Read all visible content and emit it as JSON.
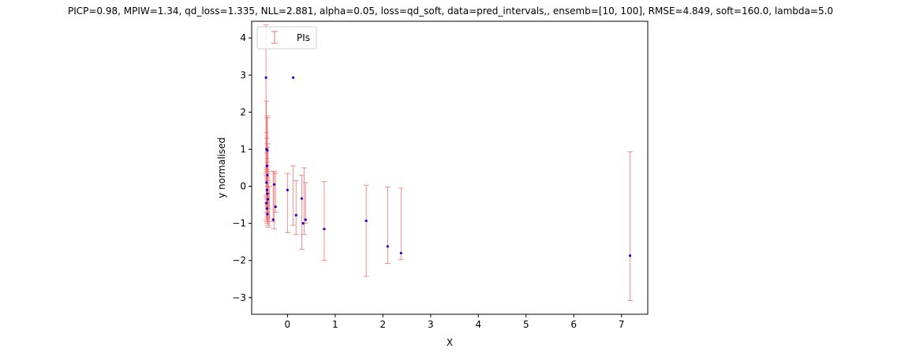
{
  "chart_data": {
    "type": "scatter",
    "title": "PICP=0.98, MPIW=1.34, qd_loss=1.335, NLL=2.881, alpha=0.05, loss=qd_soft, data=pred_intervals,, ensemb=[10, 100], RMSE=4.849, soft=160.0, lambda=5.0",
    "xlabel": "X",
    "ylabel": "y normalised",
    "xlim": [
      -0.75,
      7.55
    ],
    "ylim": [
      -3.45,
      4.45
    ],
    "xticks": [
      0,
      1,
      2,
      3,
      4,
      5,
      6,
      7
    ],
    "xtick_labels": [
      "0",
      "1",
      "2",
      "3",
      "4",
      "5",
      "6",
      "7"
    ],
    "yticks": [
      -3,
      -2,
      -1,
      0,
      1,
      2,
      3,
      4
    ],
    "ytick_labels": [
      "−3",
      "−2",
      "−1",
      "0",
      "1",
      "2",
      "3",
      "4"
    ],
    "grid": false,
    "legend": {
      "entries": [
        "PIs"
      ],
      "placement": "top-left"
    },
    "series": [
      {
        "name": "PIs",
        "kind": "errorbar",
        "color": "#f26d6d",
        "intervals": [
          {
            "x": -0.45,
            "lo": 0.35,
            "hi": 4.35
          },
          {
            "x": -0.44,
            "lo": -0.3,
            "hi": 2.3
          },
          {
            "x": -0.43,
            "lo": 0.4,
            "hi": 1.9
          },
          {
            "x": -0.42,
            "lo": 0.2,
            "hi": 1.85
          },
          {
            "x": -0.44,
            "lo": -0.25,
            "hi": 1.45
          },
          {
            "x": -0.43,
            "lo": -0.35,
            "hi": 1.3
          },
          {
            "x": -0.42,
            "lo": 0.0,
            "hi": 1.15
          },
          {
            "x": -0.41,
            "lo": -0.2,
            "hi": 1.05
          },
          {
            "x": -0.44,
            "lo": -0.45,
            "hi": 0.9
          },
          {
            "x": -0.43,
            "lo": -0.5,
            "hi": 0.75
          },
          {
            "x": -0.42,
            "lo": -0.55,
            "hi": 0.65
          },
          {
            "x": -0.41,
            "lo": -0.6,
            "hi": 0.55
          },
          {
            "x": -0.44,
            "lo": -0.7,
            "hi": 0.5
          },
          {
            "x": -0.43,
            "lo": -0.75,
            "hi": 0.45
          },
          {
            "x": -0.42,
            "lo": -0.8,
            "hi": 0.4
          },
          {
            "x": -0.41,
            "lo": -0.85,
            "hi": 0.35
          },
          {
            "x": -0.44,
            "lo": -0.9,
            "hi": 0.3
          },
          {
            "x": -0.43,
            "lo": -0.95,
            "hi": 0.25
          },
          {
            "x": -0.42,
            "lo": -1.0,
            "hi": 0.2
          },
          {
            "x": -0.41,
            "lo": -1.05,
            "hi": 0.15
          },
          {
            "x": -0.4,
            "lo": -1.1,
            "hi": 0.1
          },
          {
            "x": -0.38,
            "lo": -0.95,
            "hi": 0.0
          },
          {
            "x": -0.3,
            "lo": -0.95,
            "hi": 0.4
          },
          {
            "x": -0.28,
            "lo": -1.15,
            "hi": 0.4
          },
          {
            "x": -0.25,
            "lo": -0.7,
            "hi": 0.35
          },
          {
            "x": 0.0,
            "lo": -1.25,
            "hi": 0.35
          },
          {
            "x": 0.12,
            "lo": -1.05,
            "hi": 0.55
          },
          {
            "x": 0.18,
            "lo": -1.3,
            "hi": 0.15
          },
          {
            "x": 0.3,
            "lo": -1.7,
            "hi": 0.3
          },
          {
            "x": 0.35,
            "lo": -1.3,
            "hi": 0.5
          },
          {
            "x": 0.38,
            "lo": -1.0,
            "hi": 0.1
          },
          {
            "x": 0.77,
            "lo": -2.0,
            "hi": 0.13
          },
          {
            "x": 1.65,
            "lo": -2.43,
            "hi": 0.03
          },
          {
            "x": 2.1,
            "lo": -2.08,
            "hi": -0.02
          },
          {
            "x": 2.38,
            "lo": -1.98,
            "hi": -0.05
          },
          {
            "x": 7.18,
            "lo": -3.08,
            "hi": 0.93
          }
        ]
      },
      {
        "name": "",
        "kind": "points",
        "color": "#2200cc",
        "points": [
          {
            "x": -0.45,
            "y": 2.93
          },
          {
            "x": 0.12,
            "y": 2.93
          },
          {
            "x": -0.44,
            "y": 1.0
          },
          {
            "x": -0.42,
            "y": 0.97
          },
          {
            "x": -0.43,
            "y": 0.55
          },
          {
            "x": -0.42,
            "y": 0.3
          },
          {
            "x": -0.44,
            "y": 0.1
          },
          {
            "x": -0.43,
            "y": -0.1
          },
          {
            "x": -0.42,
            "y": -0.2
          },
          {
            "x": -0.41,
            "y": -0.35
          },
          {
            "x": -0.44,
            "y": -0.45
          },
          {
            "x": -0.43,
            "y": -0.6
          },
          {
            "x": -0.42,
            "y": -0.75
          },
          {
            "x": -0.28,
            "y": 0.05
          },
          {
            "x": -0.25,
            "y": -0.55
          },
          {
            "x": -0.3,
            "y": -0.9
          },
          {
            "x": 0.0,
            "y": -0.1
          },
          {
            "x": 0.18,
            "y": -0.78
          },
          {
            "x": 0.3,
            "y": -0.33
          },
          {
            "x": 0.33,
            "y": -1.0
          },
          {
            "x": 0.38,
            "y": -0.9
          },
          {
            "x": 0.77,
            "y": -1.15
          },
          {
            "x": 1.65,
            "y": -0.93
          },
          {
            "x": 2.1,
            "y": -1.62
          },
          {
            "x": 2.38,
            "y": -1.8
          },
          {
            "x": 7.18,
            "y": -1.87
          }
        ]
      }
    ]
  }
}
